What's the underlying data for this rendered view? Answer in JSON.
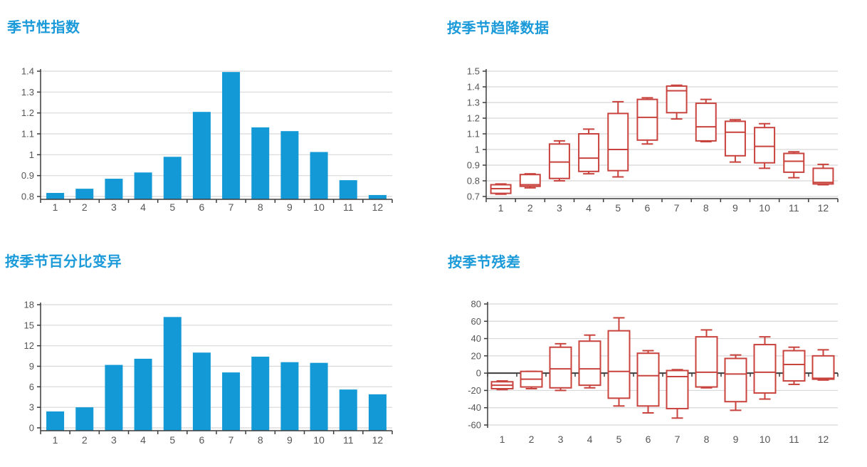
{
  "colors": {
    "title": "#1b9ad9",
    "bar": "#1399d5",
    "box": "#c9433e",
    "box_fill": "#ffffff",
    "grid": "#d8d8d8",
    "axis": "#3c3c3c",
    "tick_label": "#555555",
    "background": "#ffffff"
  },
  "chart_data": [
    {
      "id": "seasonal-index",
      "type": "bar",
      "title": "季节性指数",
      "categories": [
        "1",
        "2",
        "3",
        "4",
        "5",
        "6",
        "7",
        "8",
        "9",
        "10",
        "11",
        "12"
      ],
      "values": [
        0.817,
        0.837,
        0.885,
        0.915,
        0.99,
        1.205,
        1.396,
        1.131,
        1.113,
        1.013,
        0.878,
        0.807
      ],
      "ylim": [
        0.8,
        1.4
      ],
      "ytick_values": [
        0.8,
        0.9,
        1,
        1.1,
        1.2,
        1.3,
        1.4
      ],
      "ytick_labels": [
        "0.8",
        "0.9",
        "1",
        "1.1",
        "1.2",
        "1.3",
        "1.4"
      ],
      "bar_base": 0.8,
      "grid": true,
      "legend": "none",
      "xlabel": "",
      "ylabel": ""
    },
    {
      "id": "detrended-by-season",
      "type": "box",
      "title": "按季节趋降数据",
      "categories": [
        "1",
        "2",
        "3",
        "4",
        "5",
        "6",
        "7",
        "8",
        "9",
        "10",
        "11",
        "12"
      ],
      "series": [
        {
          "min": 0.715,
          "q1": 0.72,
          "median": 0.75,
          "q3": 0.775,
          "max": 0.78
        },
        {
          "min": 0.755,
          "q1": 0.765,
          "median": 0.775,
          "q3": 0.84,
          "max": 0.845
        },
        {
          "min": 0.8,
          "q1": 0.815,
          "median": 0.92,
          "q3": 1.035,
          "max": 1.055
        },
        {
          "min": 0.845,
          "q1": 0.86,
          "median": 0.945,
          "q3": 1.1,
          "max": 1.13
        },
        {
          "min": 0.825,
          "q1": 0.865,
          "median": 1.0,
          "q3": 1.23,
          "max": 1.305
        },
        {
          "min": 1.035,
          "q1": 1.06,
          "median": 1.205,
          "q3": 1.32,
          "max": 1.33
        },
        {
          "min": 1.195,
          "q1": 1.235,
          "median": 1.375,
          "q3": 1.405,
          "max": 1.41
        },
        {
          "min": 1.05,
          "q1": 1.055,
          "median": 1.145,
          "q3": 1.295,
          "max": 1.32
        },
        {
          "min": 0.92,
          "q1": 0.96,
          "median": 1.11,
          "q3": 1.18,
          "max": 1.19
        },
        {
          "min": 0.88,
          "q1": 0.915,
          "median": 1.02,
          "q3": 1.14,
          "max": 1.165
        },
        {
          "min": 0.82,
          "q1": 0.855,
          "median": 0.925,
          "q3": 0.975,
          "max": 0.985
        },
        {
          "min": 0.775,
          "q1": 0.78,
          "median": 0.79,
          "q3": 0.88,
          "max": 0.905
        }
      ],
      "ylim": [
        0.7,
        1.5
      ],
      "ytick_values": [
        0.7,
        0.8,
        0.9,
        1,
        1.1,
        1.2,
        1.3,
        1.4,
        1.5
      ],
      "ytick_labels": [
        "0.7",
        "0.8",
        "0.9",
        "1",
        "1.1",
        "1.2",
        "1.3",
        "1.4",
        "1.5"
      ],
      "grid": true,
      "legend": "none",
      "xlabel": "",
      "ylabel": ""
    },
    {
      "id": "percent-variation-by-season",
      "type": "bar",
      "title": "按季节百分比变异",
      "categories": [
        "1",
        "2",
        "3",
        "4",
        "5",
        "6",
        "7",
        "8",
        "9",
        "10",
        "11",
        "12"
      ],
      "values": [
        2.4,
        3.0,
        9.2,
        10.1,
        16.2,
        11.0,
        8.1,
        10.4,
        9.6,
        9.5,
        5.6,
        4.9
      ],
      "ylim": [
        0,
        18
      ],
      "ytick_values": [
        0,
        3,
        6,
        9,
        12,
        15,
        18
      ],
      "ytick_labels": [
        "0",
        "3",
        "6",
        "9",
        "12",
        "15",
        "18"
      ],
      "bar_base": 0,
      "grid": true,
      "legend": "none",
      "xlabel": "",
      "ylabel": ""
    },
    {
      "id": "residuals-by-season",
      "type": "box",
      "title": "按季节残差",
      "categories": [
        "1",
        "2",
        "3",
        "4",
        "5",
        "6",
        "7",
        "8",
        "9",
        "10",
        "11",
        "12"
      ],
      "series": [
        {
          "min": -19,
          "q1": -18,
          "median": -14,
          "q3": -10,
          "max": -9
        },
        {
          "min": -18,
          "q1": -16,
          "median": -7,
          "q3": 2,
          "max": 2
        },
        {
          "min": -20,
          "q1": -17,
          "median": 5,
          "q3": 30,
          "max": 34
        },
        {
          "min": -17,
          "q1": -14,
          "median": 5,
          "q3": 37,
          "max": 44
        },
        {
          "min": -38,
          "q1": -29,
          "median": 2,
          "q3": 49,
          "max": 64
        },
        {
          "min": -46,
          "q1": -38,
          "median": -3,
          "q3": 23,
          "max": 26
        },
        {
          "min": -52,
          "q1": -41,
          "median": -4,
          "q3": 3,
          "max": 4
        },
        {
          "min": -17,
          "q1": -16,
          "median": 1,
          "q3": 42,
          "max": 50
        },
        {
          "min": -43,
          "q1": -33,
          "median": -1,
          "q3": 17,
          "max": 21
        },
        {
          "min": -30,
          "q1": -23,
          "median": 1,
          "q3": 33,
          "max": 42
        },
        {
          "min": -13,
          "q1": -9,
          "median": 10,
          "q3": 26,
          "max": 30
        },
        {
          "min": -8,
          "q1": -7,
          "median": -6,
          "q3": 20,
          "max": 27
        }
      ],
      "ylim": [
        -60,
        80
      ],
      "ytick_values": [
        -60,
        -40,
        -20,
        0,
        20,
        40,
        60,
        80
      ],
      "ytick_labels": [
        "-60",
        "-40",
        "-20",
        "0",
        "20",
        "40",
        "60",
        "80"
      ],
      "zero_axis": true,
      "grid": true,
      "legend": "none",
      "xlabel": "",
      "ylabel": ""
    }
  ]
}
